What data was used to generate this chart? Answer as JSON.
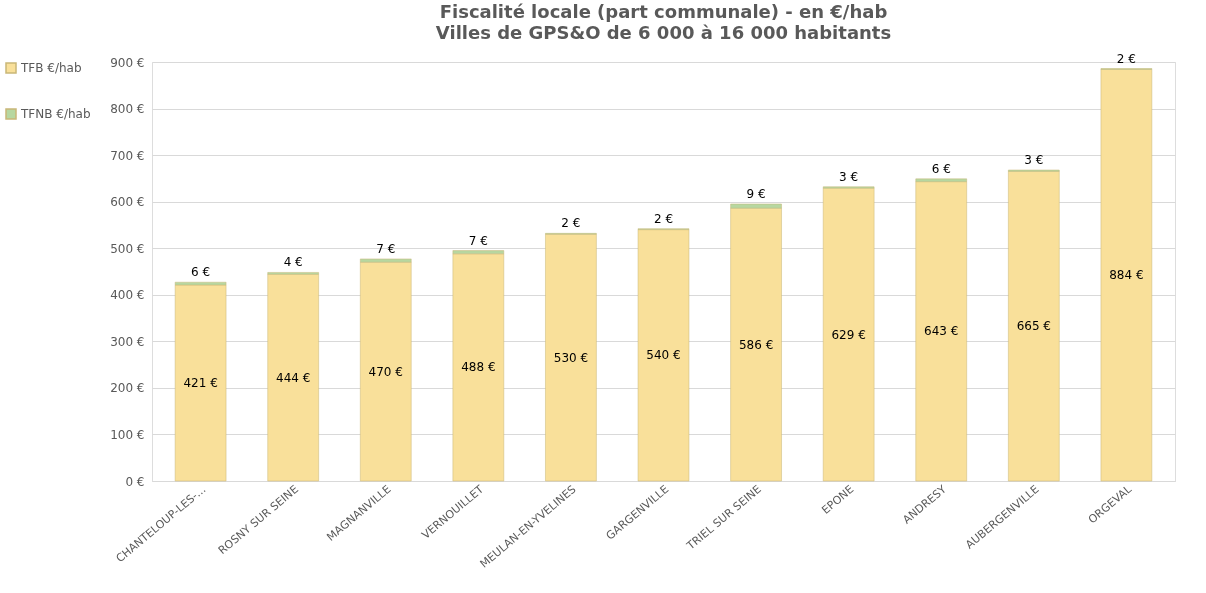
{
  "chart_data": {
    "type": "bar",
    "stacked": true,
    "title": "Fiscalité locale (part communale) - en €/hab",
    "subtitle": "Villes de GPS&O de 6 000 à 16 000 habitants",
    "categories": [
      "CHANTELOUP-LES-...",
      "ROSNY SUR SEINE",
      "MAGNANVILLE",
      "VERNOUILLET",
      "MEULAN-EN-YVELINES",
      "GARGENVILLE",
      "TRIEL SUR SEINE",
      "EPONE",
      "ANDRESY",
      "AUBERGENVILLE",
      "ORGEVAL"
    ],
    "series": [
      {
        "name": "TFB €/hab",
        "color": "#f9e09a",
        "values": [
          421,
          444,
          470,
          488,
          530,
          540,
          586,
          629,
          643,
          665,
          884
        ],
        "value_labels": [
          "421 €",
          "444 €",
          "470 €",
          "488 €",
          "530 €",
          "540 €",
          "586 €",
          "629 €",
          "643 €",
          "665 €",
          "884 €"
        ]
      },
      {
        "name": "TFNB €/hab",
        "color": "#b7d7a0",
        "values": [
          6,
          4,
          7,
          7,
          2,
          2,
          9,
          3,
          6,
          3,
          2
        ],
        "value_labels": [
          "6 €",
          "4 €",
          "7 €",
          "7 €",
          "2 €",
          "2 €",
          "9 €",
          "3 €",
          "6 €",
          "3 €",
          "2 €"
        ]
      }
    ],
    "ylim": [
      0,
      900
    ],
    "yticks": [
      {
        "value": 0,
        "label": "0 €"
      },
      {
        "value": 100,
        "label": "100 €"
      },
      {
        "value": 200,
        "label": "200 €"
      },
      {
        "value": 300,
        "label": "300 €"
      },
      {
        "value": 400,
        "label": "400 €"
      },
      {
        "value": 500,
        "label": "500 €"
      },
      {
        "value": 600,
        "label": "600 €"
      },
      {
        "value": 700,
        "label": "700 €"
      },
      {
        "value": 800,
        "label": "800 €"
      },
      {
        "value": 900,
        "label": "900 €"
      }
    ],
    "grid": "y",
    "legend": "left"
  }
}
